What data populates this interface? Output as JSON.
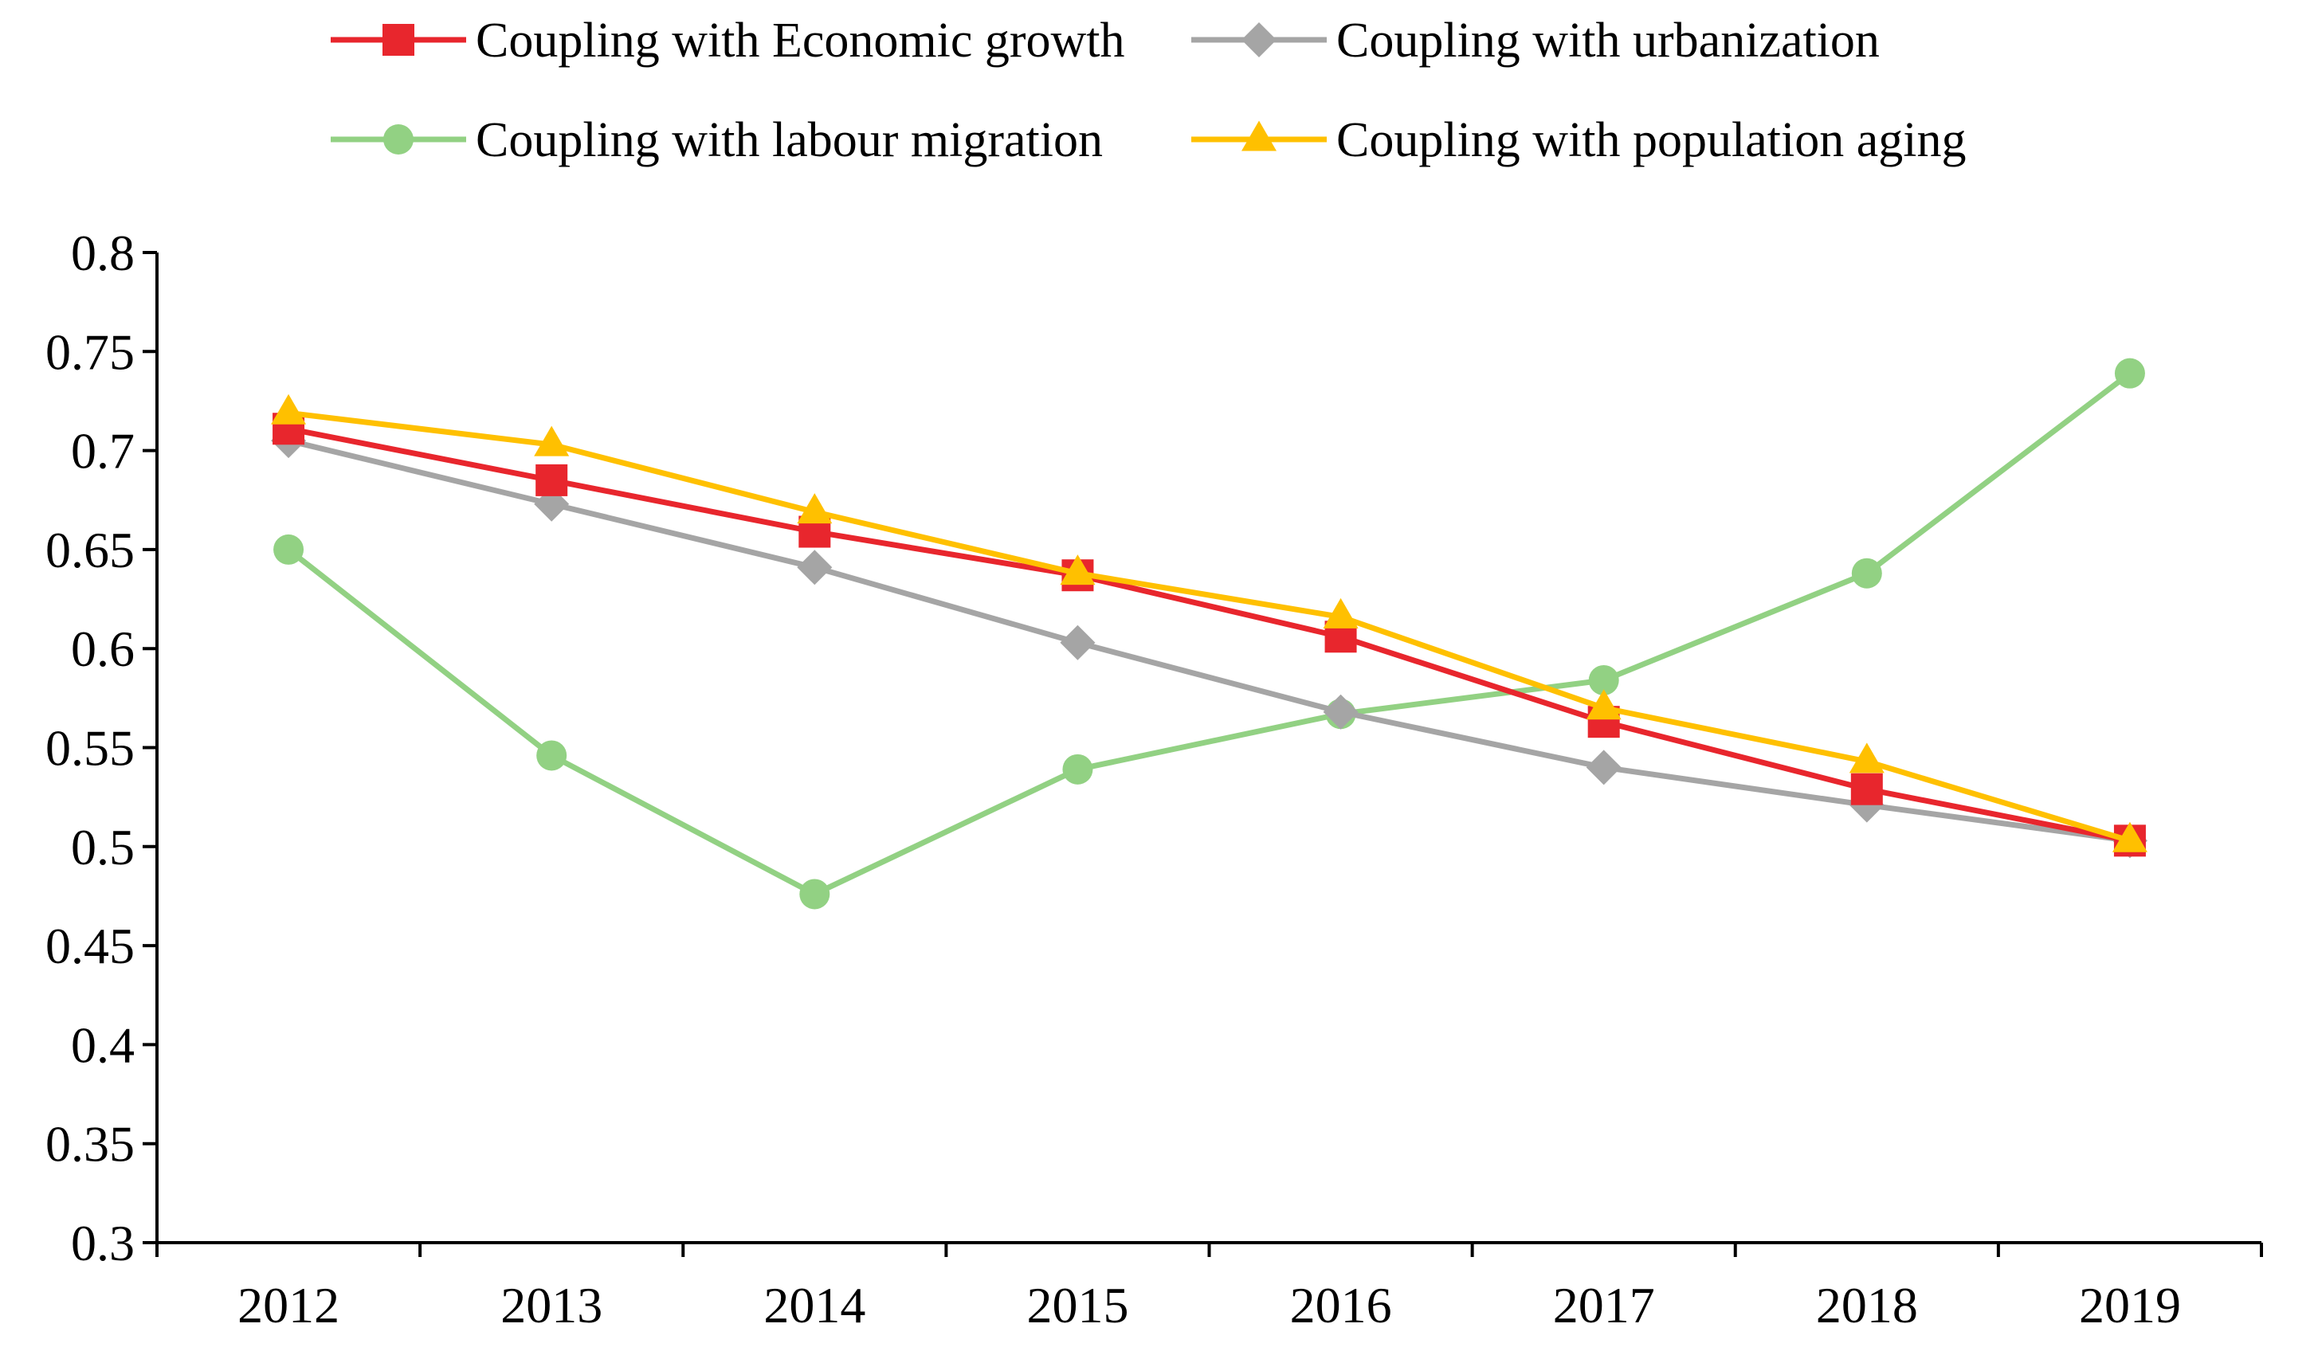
{
  "chart_data": {
    "type": "line",
    "title": "",
    "xlabel": "",
    "ylabel": "",
    "x": [
      "2012",
      "2013",
      "2014",
      "2015",
      "2016",
      "2017",
      "2018",
      "2019"
    ],
    "ylim": [
      0.3,
      0.8
    ],
    "y_ticks": [
      "0.3",
      "0.35",
      "0.4",
      "0.45",
      "0.5",
      "0.55",
      "0.6",
      "0.65",
      "0.7",
      "0.75",
      "0.8"
    ],
    "grid": false,
    "legend_position": "top",
    "series": [
      {
        "name": "Coupling with Economic growth",
        "color": "#e8262d",
        "marker": "square",
        "values": [
          0.711,
          0.685,
          0.659,
          0.637,
          0.606,
          0.563,
          0.529,
          0.503
        ]
      },
      {
        "name": "Coupling with urbanization",
        "color": "#a5a5a5",
        "marker": "diamond",
        "values": [
          0.705,
          0.673,
          0.641,
          0.603,
          0.568,
          0.54,
          0.521,
          0.503
        ]
      },
      {
        "name": "Coupling with labour migration",
        "color": "#92d183",
        "marker": "circle",
        "values": [
          0.65,
          0.546,
          0.476,
          0.539,
          0.567,
          0.584,
          0.638,
          0.739
        ]
      },
      {
        "name": "Coupling with population aging",
        "color": "#ffc000",
        "marker": "triangle",
        "values": [
          0.719,
          0.703,
          0.669,
          0.638,
          0.616,
          0.57,
          0.543,
          0.503
        ]
      }
    ]
  }
}
